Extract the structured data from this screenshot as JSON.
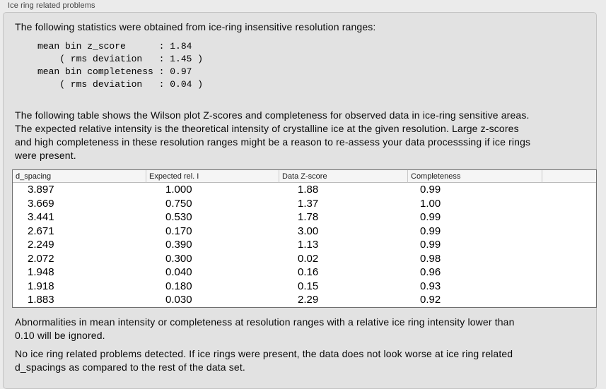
{
  "panel": {
    "title": "Ice ring related problems",
    "intro": "The following statistics were obtained from ice-ring insensitive resolution ranges:",
    "stats_block": "mean bin z_score      : 1.84\n    ( rms deviation   : 1.45 )\nmean bin completeness : 0.97\n    ( rms deviation   : 0.04 )",
    "table_note": "The following table shows the Wilson plot Z-scores and completeness for observed data in ice-ring sensitive areas.\nThe expected relative intensity is the theoretical intensity of crystalline ice at the given resolution. Large z-scores\nand high completeness in these resolution ranges might be a reason to re-assess your data processsing if ice rings\nwere present.",
    "table": {
      "columns": [
        "d_spacing",
        "Expected rel. I",
        "Data Z-score",
        "Completeness"
      ],
      "rows": [
        [
          "3.897",
          "1.000",
          "1.88",
          "0.99"
        ],
        [
          "3.669",
          "0.750",
          "1.37",
          "1.00"
        ],
        [
          "3.441",
          "0.530",
          "1.78",
          "0.99"
        ],
        [
          "2.671",
          "0.170",
          "3.00",
          "0.99"
        ],
        [
          "2.249",
          "0.390",
          "1.13",
          "0.99"
        ],
        [
          "2.072",
          "0.300",
          "0.02",
          "0.98"
        ],
        [
          "1.948",
          "0.040",
          "0.16",
          "0.96"
        ],
        [
          "1.918",
          "0.180",
          "0.15",
          "0.93"
        ],
        [
          "1.883",
          "0.030",
          "2.29",
          "0.92"
        ]
      ]
    },
    "footer_note_1": "Abnormalities in mean intensity or completeness at resolution ranges with a relative ice ring intensity lower than\n0.10 will be ignored.",
    "footer_note_2": "No ice ring related problems detected. If ice rings were present, the data does not look worse at ice ring related\nd_spacings as compared to the rest of the data set."
  }
}
